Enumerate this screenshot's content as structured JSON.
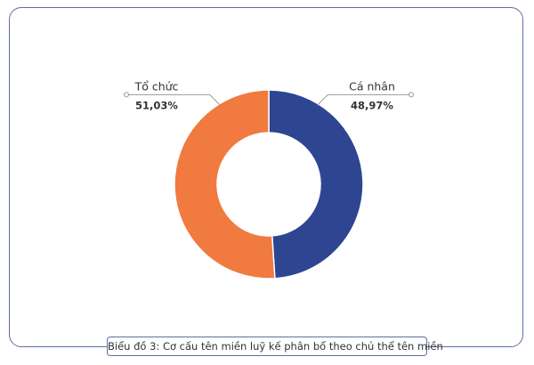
{
  "chart_data": {
    "type": "pie",
    "style": "donut",
    "title": "Biểu đồ 3: Cơ cấu tên miền luỹ kế phân bổ theo chủ thể tên miền",
    "categories": [
      "Cá nhân",
      "Tổ chức"
    ],
    "values": [
      48.97,
      51.03
    ],
    "value_labels": [
      "48,97%",
      "51,03%"
    ],
    "colors": [
      "#2e4591",
      "#f07a40"
    ],
    "legend": "none",
    "grid": false
  },
  "colors": {
    "border": "#5b6fa0",
    "label_text": "#333333",
    "connector": "#999999"
  }
}
